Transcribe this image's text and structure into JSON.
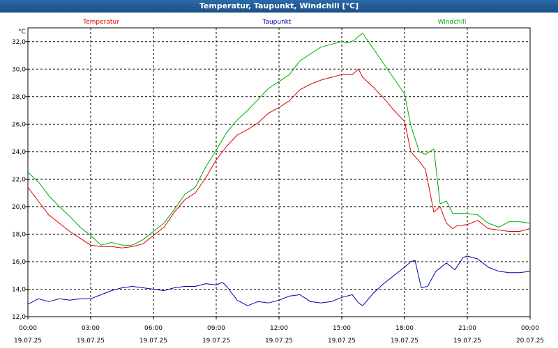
{
  "window": {
    "title": "Temperatur, Taupunkt, Windchill [°C]"
  },
  "chart_data": {
    "type": "line",
    "title": "Temperatur, Taupunkt, Windchill [°C]",
    "ylabel": "°C",
    "ylim": [
      12.0,
      33.0
    ],
    "yticks": [
      "12,0",
      "14,0",
      "16,0",
      "18,0",
      "20,0",
      "22,0",
      "24,0",
      "26,0",
      "28,0",
      "30,0",
      "32,0"
    ],
    "xticks": [
      {
        "time": "00:00",
        "date": "19.07.25"
      },
      {
        "time": "03:00",
        "date": "19.07.25"
      },
      {
        "time": "06:00",
        "date": "19.07.25"
      },
      {
        "time": "09:00",
        "date": "19.07.25"
      },
      {
        "time": "12:00",
        "date": "19.07.25"
      },
      {
        "time": "15:00",
        "date": "19.07.25"
      },
      {
        "time": "18:00",
        "date": "19.07.25"
      },
      {
        "time": "21:00",
        "date": "19.07.25"
      },
      {
        "time": "00:00",
        "date": "20.07.25"
      }
    ],
    "xlim_hours": [
      0,
      24
    ],
    "grid": true,
    "series": [
      {
        "name": "Temperatur",
        "color": "#dd0000",
        "x": [
          0,
          0.5,
          1,
          1.5,
          2,
          2.5,
          3,
          3.5,
          4,
          4.5,
          5,
          5.5,
          6,
          6.5,
          7,
          7.5,
          8,
          8.5,
          9,
          9.5,
          10,
          10.5,
          11,
          11.5,
          12,
          12.5,
          13,
          13.5,
          14,
          14.5,
          15,
          15.5,
          15.8,
          16,
          16.5,
          17,
          17.5,
          18,
          18.3,
          18.7,
          19,
          19.4,
          19.7,
          20,
          20.3,
          20.5,
          21,
          21.5,
          22,
          22.5,
          23,
          23.5,
          24
        ],
        "values": [
          21.4,
          20.4,
          19.4,
          18.8,
          18.2,
          17.7,
          17.2,
          17.1,
          17.1,
          17.0,
          17.1,
          17.3,
          17.9,
          18.5,
          19.6,
          20.5,
          21.0,
          22.1,
          23.4,
          24.4,
          25.2,
          25.6,
          26.1,
          26.8,
          27.2,
          27.7,
          28.5,
          28.9,
          29.2,
          29.4,
          29.6,
          29.6,
          30.0,
          29.4,
          28.7,
          27.9,
          27.0,
          26.2,
          24.0,
          23.3,
          22.7,
          19.6,
          20.0,
          18.8,
          18.4,
          18.6,
          18.7,
          19.0,
          18.4,
          18.3,
          18.2,
          18.2,
          18.4
        ]
      },
      {
        "name": "Taupunkt",
        "color": "#0000aa",
        "x": [
          0,
          0.5,
          1,
          1.5,
          2,
          2.5,
          3,
          3.5,
          4,
          4.5,
          5,
          5.5,
          6,
          6.5,
          7,
          7.5,
          8,
          8.5,
          9,
          9.3,
          9.5,
          10,
          10.5,
          11,
          11.5,
          12,
          12.5,
          13,
          13.5,
          14,
          14.5,
          15,
          15.5,
          15.8,
          16,
          16.5,
          17,
          17.5,
          18,
          18.3,
          18.5,
          18.8,
          19.1,
          19.5,
          20,
          20.4,
          20.8,
          21,
          21.5,
          22,
          22.5,
          23,
          23.5,
          24
        ],
        "values": [
          12.9,
          13.3,
          13.1,
          13.3,
          13.2,
          13.3,
          13.3,
          13.6,
          13.9,
          14.1,
          14.2,
          14.1,
          14.0,
          13.9,
          14.1,
          14.2,
          14.2,
          14.4,
          14.3,
          14.5,
          14.2,
          13.2,
          12.8,
          13.1,
          13.0,
          13.2,
          13.5,
          13.6,
          13.1,
          13.0,
          13.1,
          13.4,
          13.6,
          13.0,
          12.8,
          13.7,
          14.4,
          15.0,
          15.6,
          16.0,
          16.1,
          14.1,
          14.2,
          15.3,
          15.9,
          15.4,
          16.3,
          16.4,
          16.2,
          15.6,
          15.3,
          15.2,
          15.2,
          15.3
        ]
      },
      {
        "name": "Windchill",
        "color": "#00aa00",
        "x": [
          0,
          0.5,
          1,
          1.5,
          2,
          2.5,
          3,
          3.5,
          4,
          4.5,
          5,
          5.5,
          6,
          6.5,
          7,
          7.5,
          8,
          8.5,
          9,
          9.5,
          10,
          10.5,
          11,
          11.5,
          12,
          12.5,
          13,
          13.5,
          14,
          14.5,
          15,
          15.3,
          15.6,
          15.8,
          16,
          16.5,
          17,
          17.5,
          18,
          18.3,
          18.7,
          19,
          19.4,
          19.7,
          20,
          20.3,
          20.5,
          21,
          21.5,
          22,
          22.5,
          23,
          23.5,
          24
        ],
        "values": [
          22.5,
          21.8,
          20.8,
          20.0,
          19.3,
          18.5,
          17.9,
          17.2,
          17.4,
          17.2,
          17.2,
          17.6,
          18.2,
          18.8,
          19.8,
          20.9,
          21.4,
          22.9,
          24.1,
          25.4,
          26.3,
          27.0,
          27.8,
          28.6,
          29.1,
          29.6,
          30.6,
          31.1,
          31.6,
          31.8,
          32.0,
          31.9,
          32.1,
          32.4,
          32.6,
          31.5,
          30.4,
          29.3,
          28.2,
          25.9,
          24.0,
          23.8,
          24.2,
          20.2,
          20.4,
          19.5,
          19.5,
          19.5,
          19.4,
          18.8,
          18.5,
          18.9,
          18.9,
          18.8
        ]
      }
    ]
  }
}
